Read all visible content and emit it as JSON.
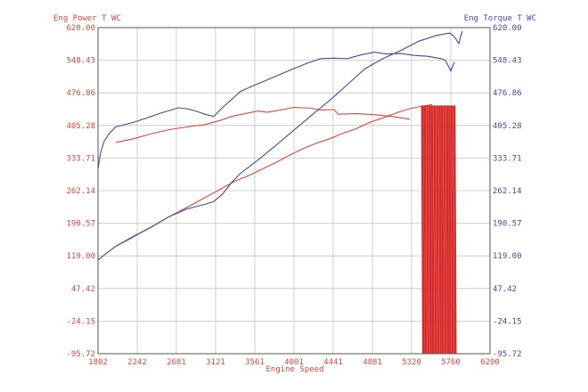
{
  "chart_data": {
    "type": "line",
    "title": "",
    "left_axis_title": "Eng Power T WC",
    "right_axis_title": "Eng Torque T WC",
    "xlabel": "Engine Speed",
    "xlim": [
      1802,
      6200
    ],
    "ylim": [
      -95.72,
      620.0
    ],
    "x_ticks": [
      "1802",
      "2242",
      "2681",
      "3121",
      "3561",
      "4001",
      "4441",
      "4881",
      "5320",
      "5760",
      "6200"
    ],
    "y_ticks": [
      "620.00",
      "548.43",
      "476.86",
      "405.28",
      "333.71",
      "262.14",
      "190.57",
      "119.00",
      "47.42",
      "-24.15",
      "-95.72"
    ],
    "grid": true,
    "colors": {
      "power": "#e0453a",
      "torque": "#4a46a8",
      "grid": "#c4c4c4",
      "axis": "#555555",
      "spike_fill": "#d92a2a",
      "left_axis_text": "#e0453a",
      "right_axis_text": "#4a46a8",
      "x_axis_text": "#e0453a"
    },
    "series": [
      {
        "key": "power_run1",
        "color_key": "power",
        "x": [
          2000,
          2150,
          2300,
          2450,
          2600,
          2750,
          2900,
          3050,
          3200,
          3350,
          3500,
          3650,
          3800,
          3950,
          4100,
          4250,
          4400,
          4550,
          4700,
          4850,
          5000,
          5150,
          5300,
          5450,
          5550
        ],
        "y": [
          140,
          155,
          172,
          188,
          205,
          220,
          236,
          252,
          268,
          284,
          296,
          310,
          324,
          340,
          354,
          366,
          376,
          388,
          398,
          412,
          422,
          433,
          442,
          448,
          451
        ]
      },
      {
        "key": "power_run2",
        "color_key": "power",
        "x": [
          2000,
          2200,
          2400,
          2600,
          2800,
          3000,
          3200,
          3300,
          3500,
          3600,
          3700,
          3900,
          4000,
          4200,
          4300,
          4450,
          4500,
          4700,
          4900,
          5100,
          5300
        ],
        "y": [
          368,
          376,
          387,
          396,
          402,
          407,
          418,
          425,
          433,
          437,
          434,
          441,
          445,
          443,
          439,
          440,
          430,
          431,
          429,
          425,
          419
        ]
      },
      {
        "key": "torque_run1",
        "color_key": "torque",
        "x": [
          1802,
          1830,
          1870,
          1930,
          2000,
          2200,
          2400,
          2500,
          2600,
          2700,
          2800,
          2900,
          3000,
          3100,
          3200,
          3300,
          3400,
          3550,
          3700,
          3850,
          4000,
          4150,
          4300,
          4450,
          4600,
          4750,
          4900,
          5050,
          5200,
          5350,
          5500,
          5650,
          5700,
          5760,
          5800
        ],
        "y": [
          310,
          345,
          370,
          388,
          402,
          412,
          425,
          432,
          438,
          444,
          442,
          437,
          430,
          425,
          445,
          462,
          480,
          493,
          505,
          518,
          530,
          542,
          552,
          553,
          552,
          560,
          566,
          562,
          563,
          559,
          557,
          552,
          548,
          525,
          545
        ]
      },
      {
        "key": "torque_run2",
        "color_key": "torque",
        "x": [
          1802,
          1900,
          2000,
          2200,
          2400,
          2600,
          2800,
          3000,
          3100,
          3200,
          3300,
          3400,
          3600,
          3800,
          4000,
          4200,
          4400,
          4600,
          4800,
          5000,
          5200,
          5400,
          5600,
          5750,
          5800,
          5850,
          5870,
          5890
        ],
        "y": [
          110,
          125,
          140,
          162,
          182,
          205,
          222,
          232,
          238,
          255,
          280,
          300,
          330,
          362,
          395,
          428,
          460,
          495,
          530,
          552,
          570,
          590,
          603,
          608,
          600,
          585,
          600,
          612
        ]
      }
    ],
    "spike": {
      "x_start": 5440,
      "x_end": 5800,
      "top_y": 449,
      "bottom_y": -95.72
    }
  }
}
